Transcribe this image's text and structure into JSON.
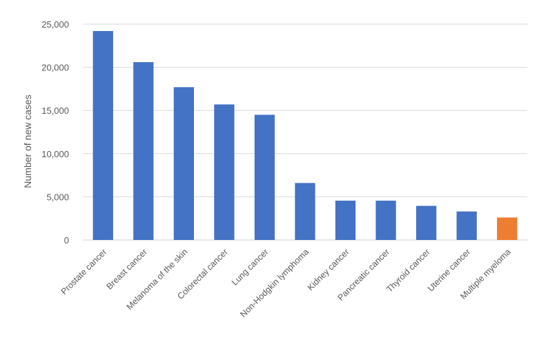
{
  "chart_data": {
    "type": "bar",
    "title": "",
    "xlabel": "",
    "ylabel": "Number of new cases",
    "ylim": [
      0,
      25000
    ],
    "yticks": [
      0,
      5000,
      10000,
      15000,
      20000,
      25000
    ],
    "ytick_labels": [
      "0",
      "5,000",
      "10,000",
      "15,000",
      "20,000",
      "25,000"
    ],
    "grid": true,
    "legend": "none",
    "categories": [
      "Prostate cancer",
      "Breast cancer",
      "Melanoma of the skin",
      "Colorectal cancer",
      "Lung cancer",
      "Non-Hodgkin lymphoma",
      "Kidney cancer",
      "Pancreatic cancer",
      "Thyroid cancer",
      "Uterine cancer",
      "Multiple myeloma"
    ],
    "values": [
      24200,
      20600,
      17700,
      15700,
      14500,
      6600,
      4550,
      4550,
      3950,
      3300,
      2600
    ],
    "colors": {
      "default": "#4472C4",
      "highlight": "#ED7D31"
    },
    "highlight_category": "Multiple myeloma"
  }
}
